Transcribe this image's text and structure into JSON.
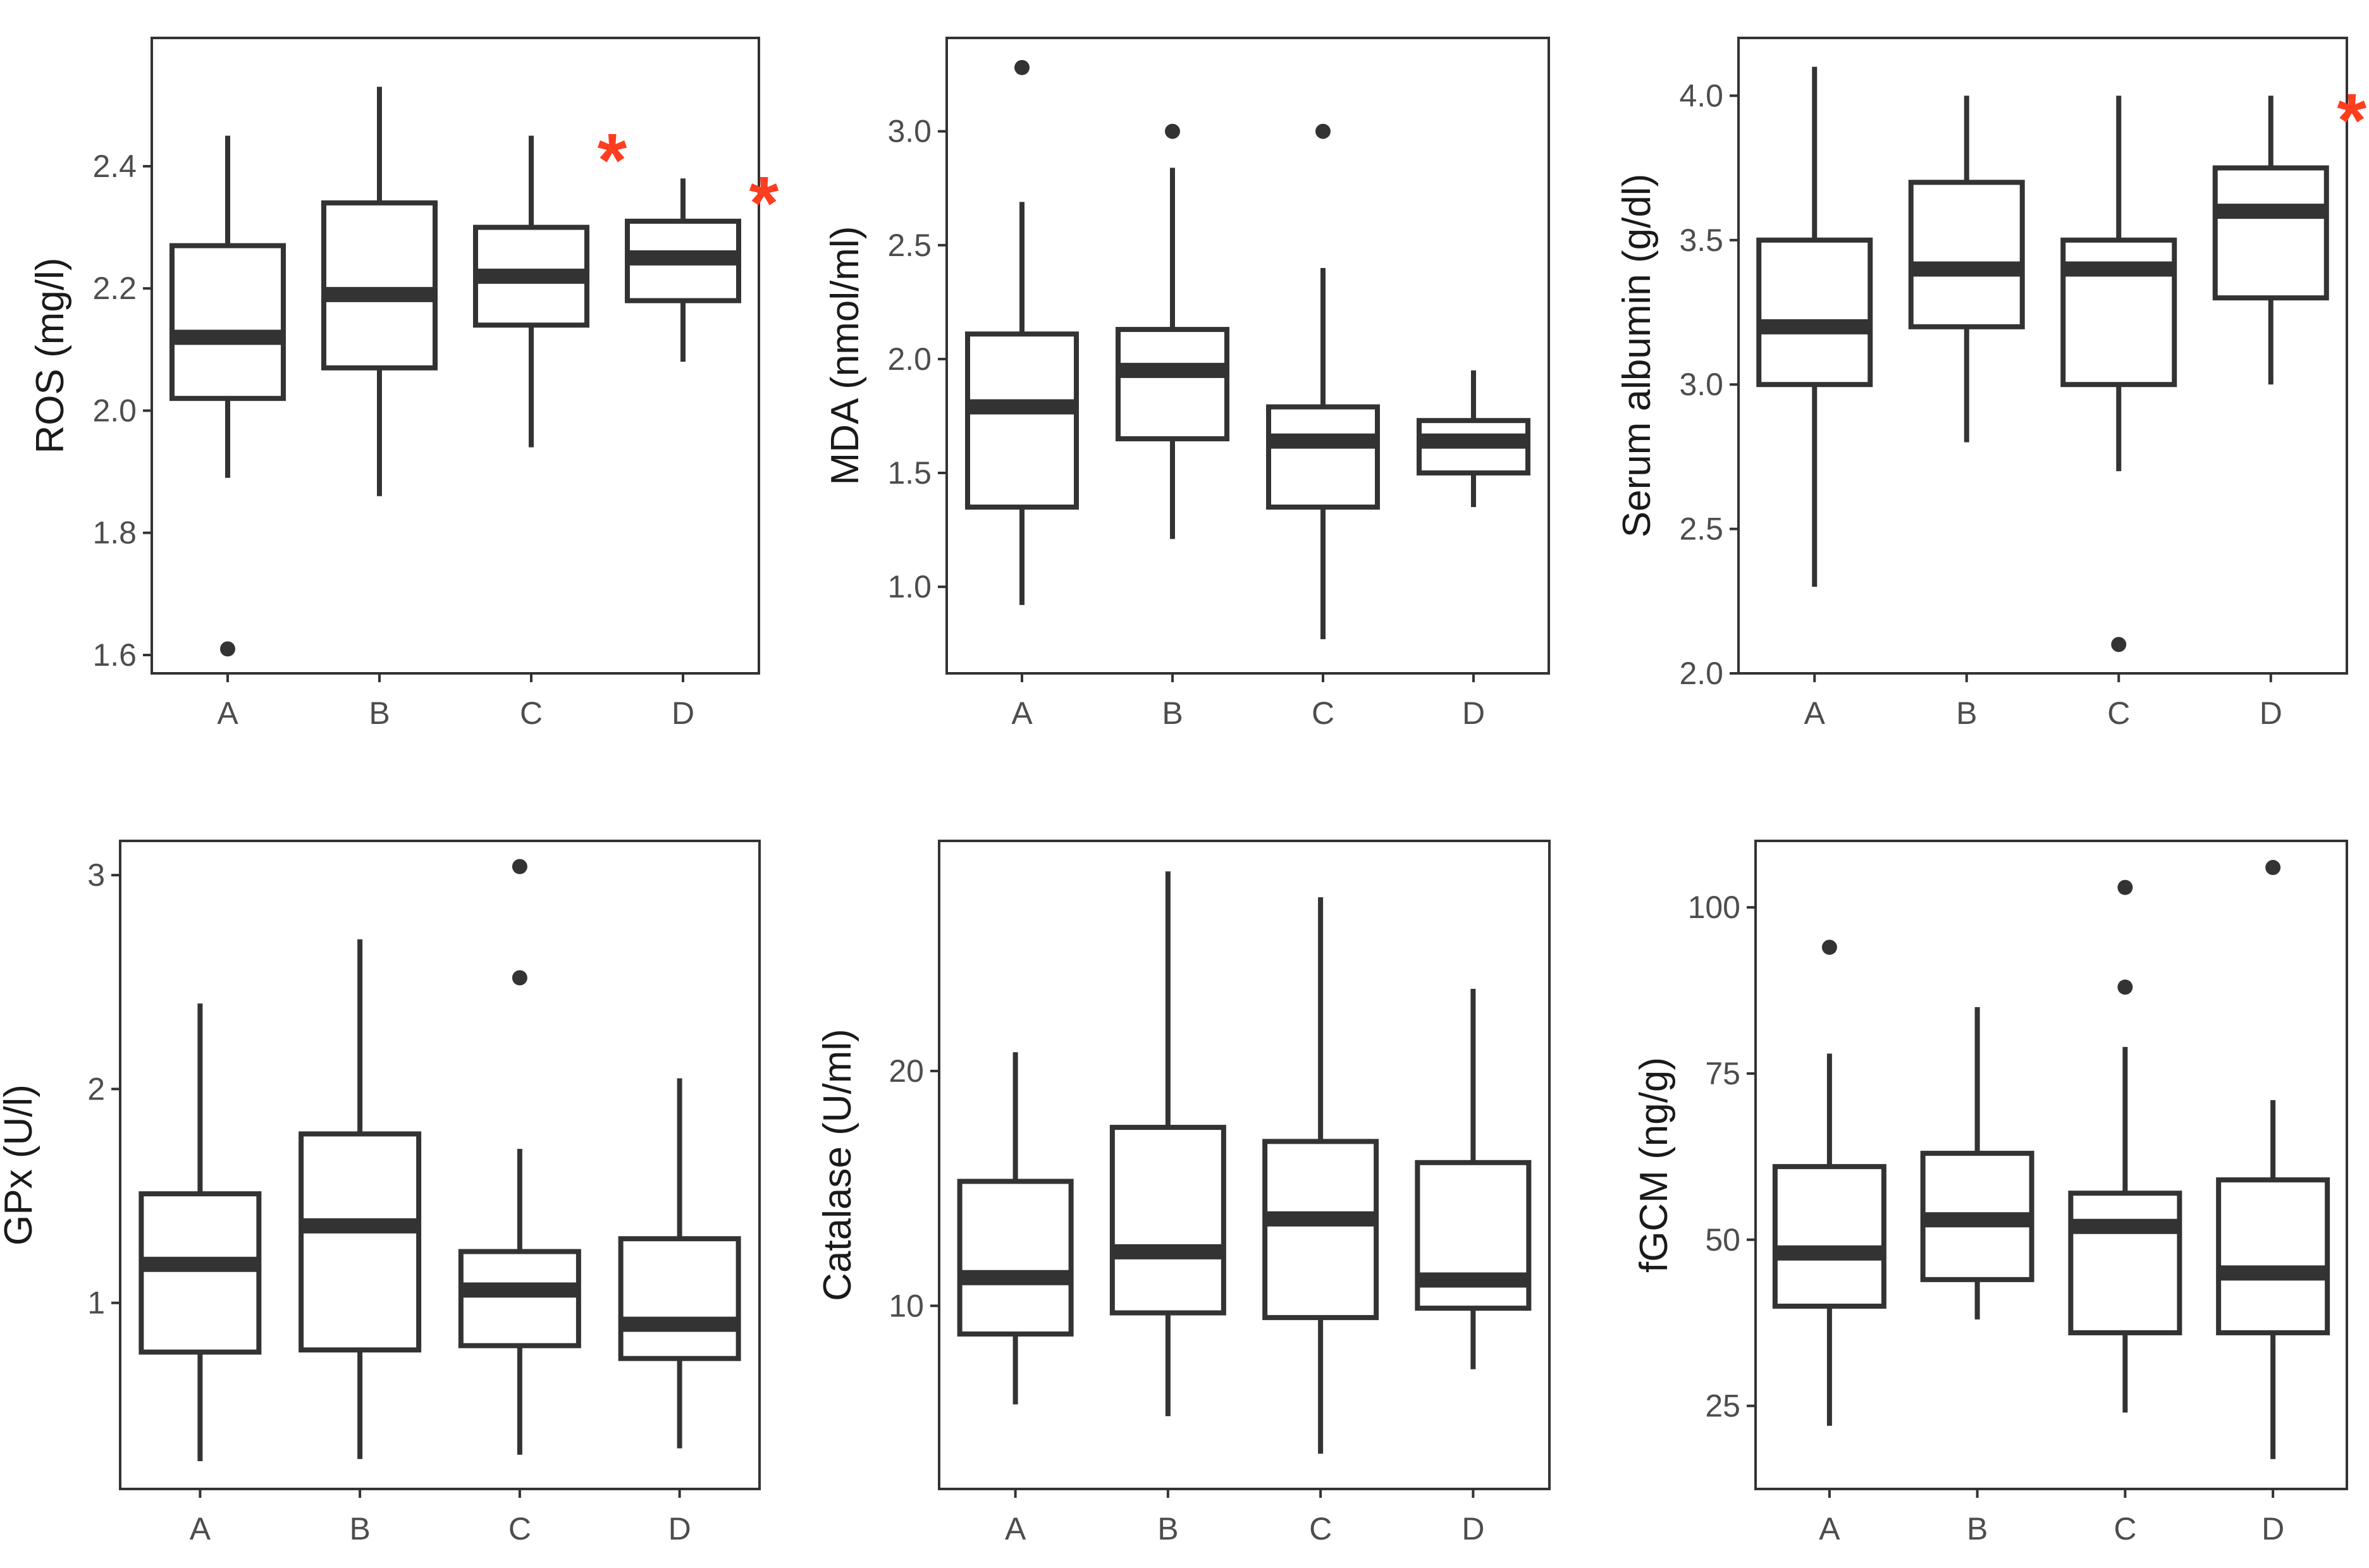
{
  "colors": {
    "box": "#333333",
    "significance": "#ff3d1f"
  },
  "chart_data": [
    {
      "type": "box",
      "ylabel": "ROS (mg/l)",
      "categories": [
        "A",
        "B",
        "C",
        "D"
      ],
      "ylim": [
        1.57,
        2.61
      ],
      "yticks": [
        {
          "value": 1.6,
          "label": "1.6"
        },
        {
          "value": 1.8,
          "label": "1.8"
        },
        {
          "value": 2.0,
          "label": "2.0"
        },
        {
          "value": 2.2,
          "label": "2.2"
        },
        {
          "value": 2.4,
          "label": "2.4"
        }
      ],
      "boxes": [
        {
          "category": "A",
          "min": 1.89,
          "q1": 2.02,
          "median": 2.12,
          "q3": 2.27,
          "max": 2.45,
          "outliers": [
            1.61
          ],
          "significant": false
        },
        {
          "category": "B",
          "min": 1.86,
          "q1": 2.07,
          "median": 2.19,
          "q3": 2.34,
          "max": 2.53,
          "outliers": [],
          "significant": false
        },
        {
          "category": "C",
          "min": 1.94,
          "q1": 2.14,
          "median": 2.22,
          "q3": 2.3,
          "max": 2.45,
          "outliers": [],
          "significant": true
        },
        {
          "category": "D",
          "min": 2.08,
          "q1": 2.18,
          "median": 2.25,
          "q3": 2.31,
          "max": 2.38,
          "outliers": [],
          "significant": true
        }
      ],
      "significance_marker": "*"
    },
    {
      "type": "box",
      "ylabel": "MDA (nmol/ml)",
      "categories": [
        "A",
        "B",
        "C",
        "D"
      ],
      "ylim": [
        0.62,
        3.41
      ],
      "yticks": [
        {
          "value": 1.0,
          "label": "1.0"
        },
        {
          "value": 1.5,
          "label": "1.5"
        },
        {
          "value": 2.0,
          "label": "2.0"
        },
        {
          "value": 2.5,
          "label": "2.5"
        },
        {
          "value": 3.0,
          "label": "3.0"
        }
      ],
      "boxes": [
        {
          "category": "A",
          "min": 0.92,
          "q1": 1.35,
          "median": 1.79,
          "q3": 2.11,
          "max": 2.69,
          "outliers": [
            3.28
          ],
          "significant": false
        },
        {
          "category": "B",
          "min": 1.21,
          "q1": 1.65,
          "median": 1.95,
          "q3": 2.13,
          "max": 2.84,
          "outliers": [
            3.0
          ],
          "significant": false
        },
        {
          "category": "C",
          "min": 0.77,
          "q1": 1.35,
          "median": 1.64,
          "q3": 1.79,
          "max": 2.4,
          "outliers": [
            3.0
          ],
          "significant": false
        },
        {
          "category": "D",
          "min": 1.35,
          "q1": 1.5,
          "median": 1.64,
          "q3": 1.73,
          "max": 1.95,
          "outliers": [],
          "significant": false
        }
      ],
      "significance_marker": "*"
    },
    {
      "type": "box",
      "ylabel": "Serum albumin (g/dl)",
      "categories": [
        "A",
        "B",
        "C",
        "D"
      ],
      "ylim": [
        2.0,
        4.2
      ],
      "yticks": [
        {
          "value": 2.0,
          "label": "2.0"
        },
        {
          "value": 2.5,
          "label": "2.5"
        },
        {
          "value": 3.0,
          "label": "3.0"
        },
        {
          "value": 3.5,
          "label": "3.5"
        },
        {
          "value": 4.0,
          "label": "4.0"
        }
      ],
      "boxes": [
        {
          "category": "A",
          "min": 2.3,
          "q1": 3.0,
          "median": 3.2,
          "q3": 3.5,
          "max": 4.1,
          "outliers": [],
          "significant": false
        },
        {
          "category": "B",
          "min": 2.8,
          "q1": 3.2,
          "median": 3.4,
          "q3": 3.7,
          "max": 4.0,
          "outliers": [],
          "significant": false
        },
        {
          "category": "C",
          "min": 2.7,
          "q1": 3.0,
          "median": 3.4,
          "q3": 3.5,
          "max": 4.0,
          "outliers": [
            2.1
          ],
          "significant": false
        },
        {
          "category": "D",
          "min": 3.0,
          "q1": 3.3,
          "median": 3.6,
          "q3": 3.75,
          "max": 4.0,
          "outliers": [],
          "significant": true
        }
      ],
      "significance_marker": "*"
    },
    {
      "type": "box",
      "ylabel": "GPx (U/l)",
      "categories": [
        "A",
        "B",
        "C",
        "D"
      ],
      "ylim": [
        0.13,
        3.16
      ],
      "yticks": [
        {
          "value": 1,
          "label": "1"
        },
        {
          "value": 2,
          "label": "2"
        },
        {
          "value": 3,
          "label": "3"
        }
      ],
      "boxes": [
        {
          "category": "A",
          "min": 0.26,
          "q1": 0.77,
          "median": 1.18,
          "q3": 1.51,
          "max": 2.4,
          "outliers": [],
          "significant": false
        },
        {
          "category": "B",
          "min": 0.27,
          "q1": 0.78,
          "median": 1.36,
          "q3": 1.79,
          "max": 2.7,
          "outliers": [],
          "significant": false
        },
        {
          "category": "C",
          "min": 0.29,
          "q1": 0.8,
          "median": 1.06,
          "q3": 1.24,
          "max": 1.72,
          "outliers": [
            2.52,
            3.04
          ],
          "significant": false
        },
        {
          "category": "D",
          "min": 0.32,
          "q1": 0.74,
          "median": 0.9,
          "q3": 1.3,
          "max": 2.05,
          "outliers": [],
          "significant": false
        }
      ],
      "significance_marker": "*"
    },
    {
      "type": "box",
      "ylabel": "Catalase (U/ml)",
      "categories": [
        "A",
        "B",
        "C",
        "D"
      ],
      "ylim": [
        2.2,
        29.8
      ],
      "yticks": [
        {
          "value": 10,
          "label": "10"
        },
        {
          "value": 20,
          "label": "20"
        }
      ],
      "boxes": [
        {
          "category": "A",
          "min": 5.8,
          "q1": 8.8,
          "median": 11.2,
          "q3": 15.3,
          "max": 20.8,
          "outliers": [],
          "significant": false
        },
        {
          "category": "B",
          "min": 5.3,
          "q1": 9.7,
          "median": 12.3,
          "q3": 17.6,
          "max": 28.5,
          "outliers": [],
          "significant": false
        },
        {
          "category": "C",
          "min": 3.7,
          "q1": 9.5,
          "median": 13.7,
          "q3": 17.0,
          "max": 27.4,
          "outliers": [],
          "significant": false
        },
        {
          "category": "D",
          "min": 7.3,
          "q1": 9.9,
          "median": 11.1,
          "q3": 16.1,
          "max": 23.5,
          "outliers": [],
          "significant": false
        }
      ],
      "significance_marker": "*"
    },
    {
      "type": "box",
      "ylabel": "fGCM (ng/g)",
      "categories": [
        "A",
        "B",
        "C",
        "D"
      ],
      "ylim": [
        12.5,
        110
      ],
      "yticks": [
        {
          "value": 25,
          "label": "25"
        },
        {
          "value": 50,
          "label": "50"
        },
        {
          "value": 75,
          "label": "75"
        },
        {
          "value": 100,
          "label": "100"
        }
      ],
      "boxes": [
        {
          "category": "A",
          "min": 22,
          "q1": 40,
          "median": 48,
          "q3": 61,
          "max": 78,
          "outliers": [
            94
          ],
          "significant": false
        },
        {
          "category": "B",
          "min": 38,
          "q1": 44,
          "median": 53,
          "q3": 63,
          "max": 85,
          "outliers": [],
          "significant": false
        },
        {
          "category": "C",
          "min": 24,
          "q1": 36,
          "median": 52,
          "q3": 57,
          "max": 79,
          "outliers": [
            88,
            103
          ],
          "significant": false
        },
        {
          "category": "D",
          "min": 17,
          "q1": 36,
          "median": 45,
          "q3": 59,
          "max": 71,
          "outliers": [
            106
          ],
          "significant": false
        }
      ],
      "significance_marker": "*"
    }
  ]
}
